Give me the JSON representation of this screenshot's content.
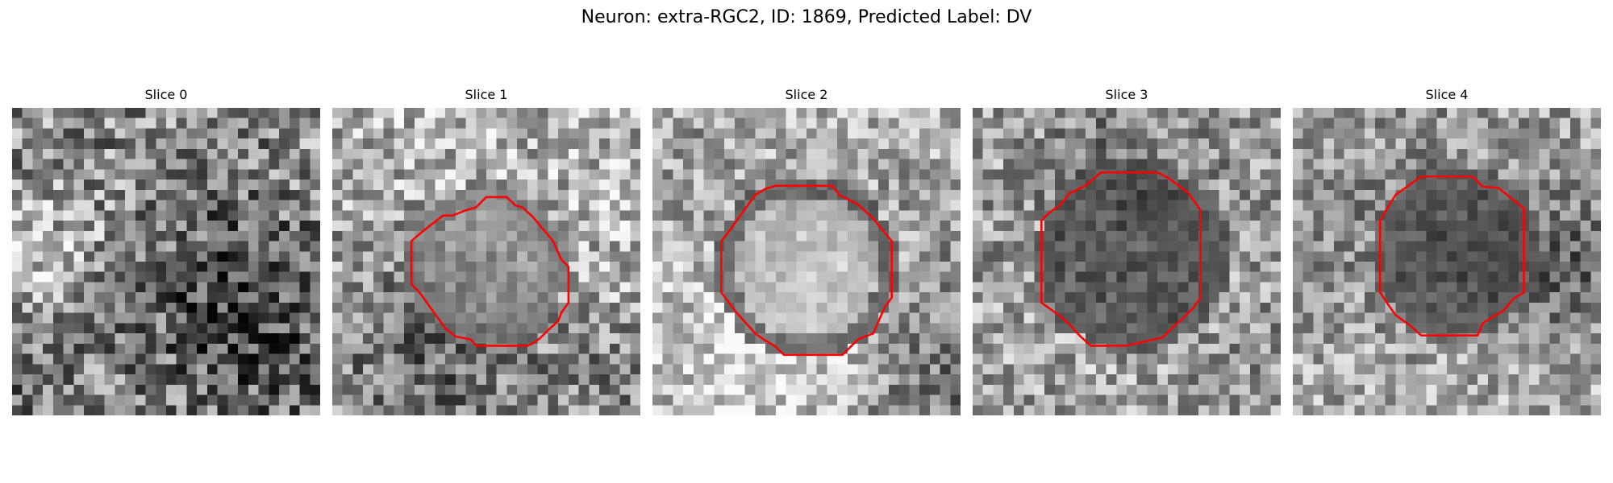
{
  "figure": {
    "title": "Neuron: extra-RGC2, ID: 1869, Predicted Label: DV",
    "outline_color": "#ff0000",
    "colormap": "gray"
  },
  "slices": [
    {
      "title": "Slice 0",
      "has_outline": false
    },
    {
      "title": "Slice 1",
      "has_outline": true
    },
    {
      "title": "Slice 2",
      "has_outline": true
    },
    {
      "title": "Slice 3",
      "has_outline": true
    },
    {
      "title": "Slice 4",
      "has_outline": true
    }
  ]
}
